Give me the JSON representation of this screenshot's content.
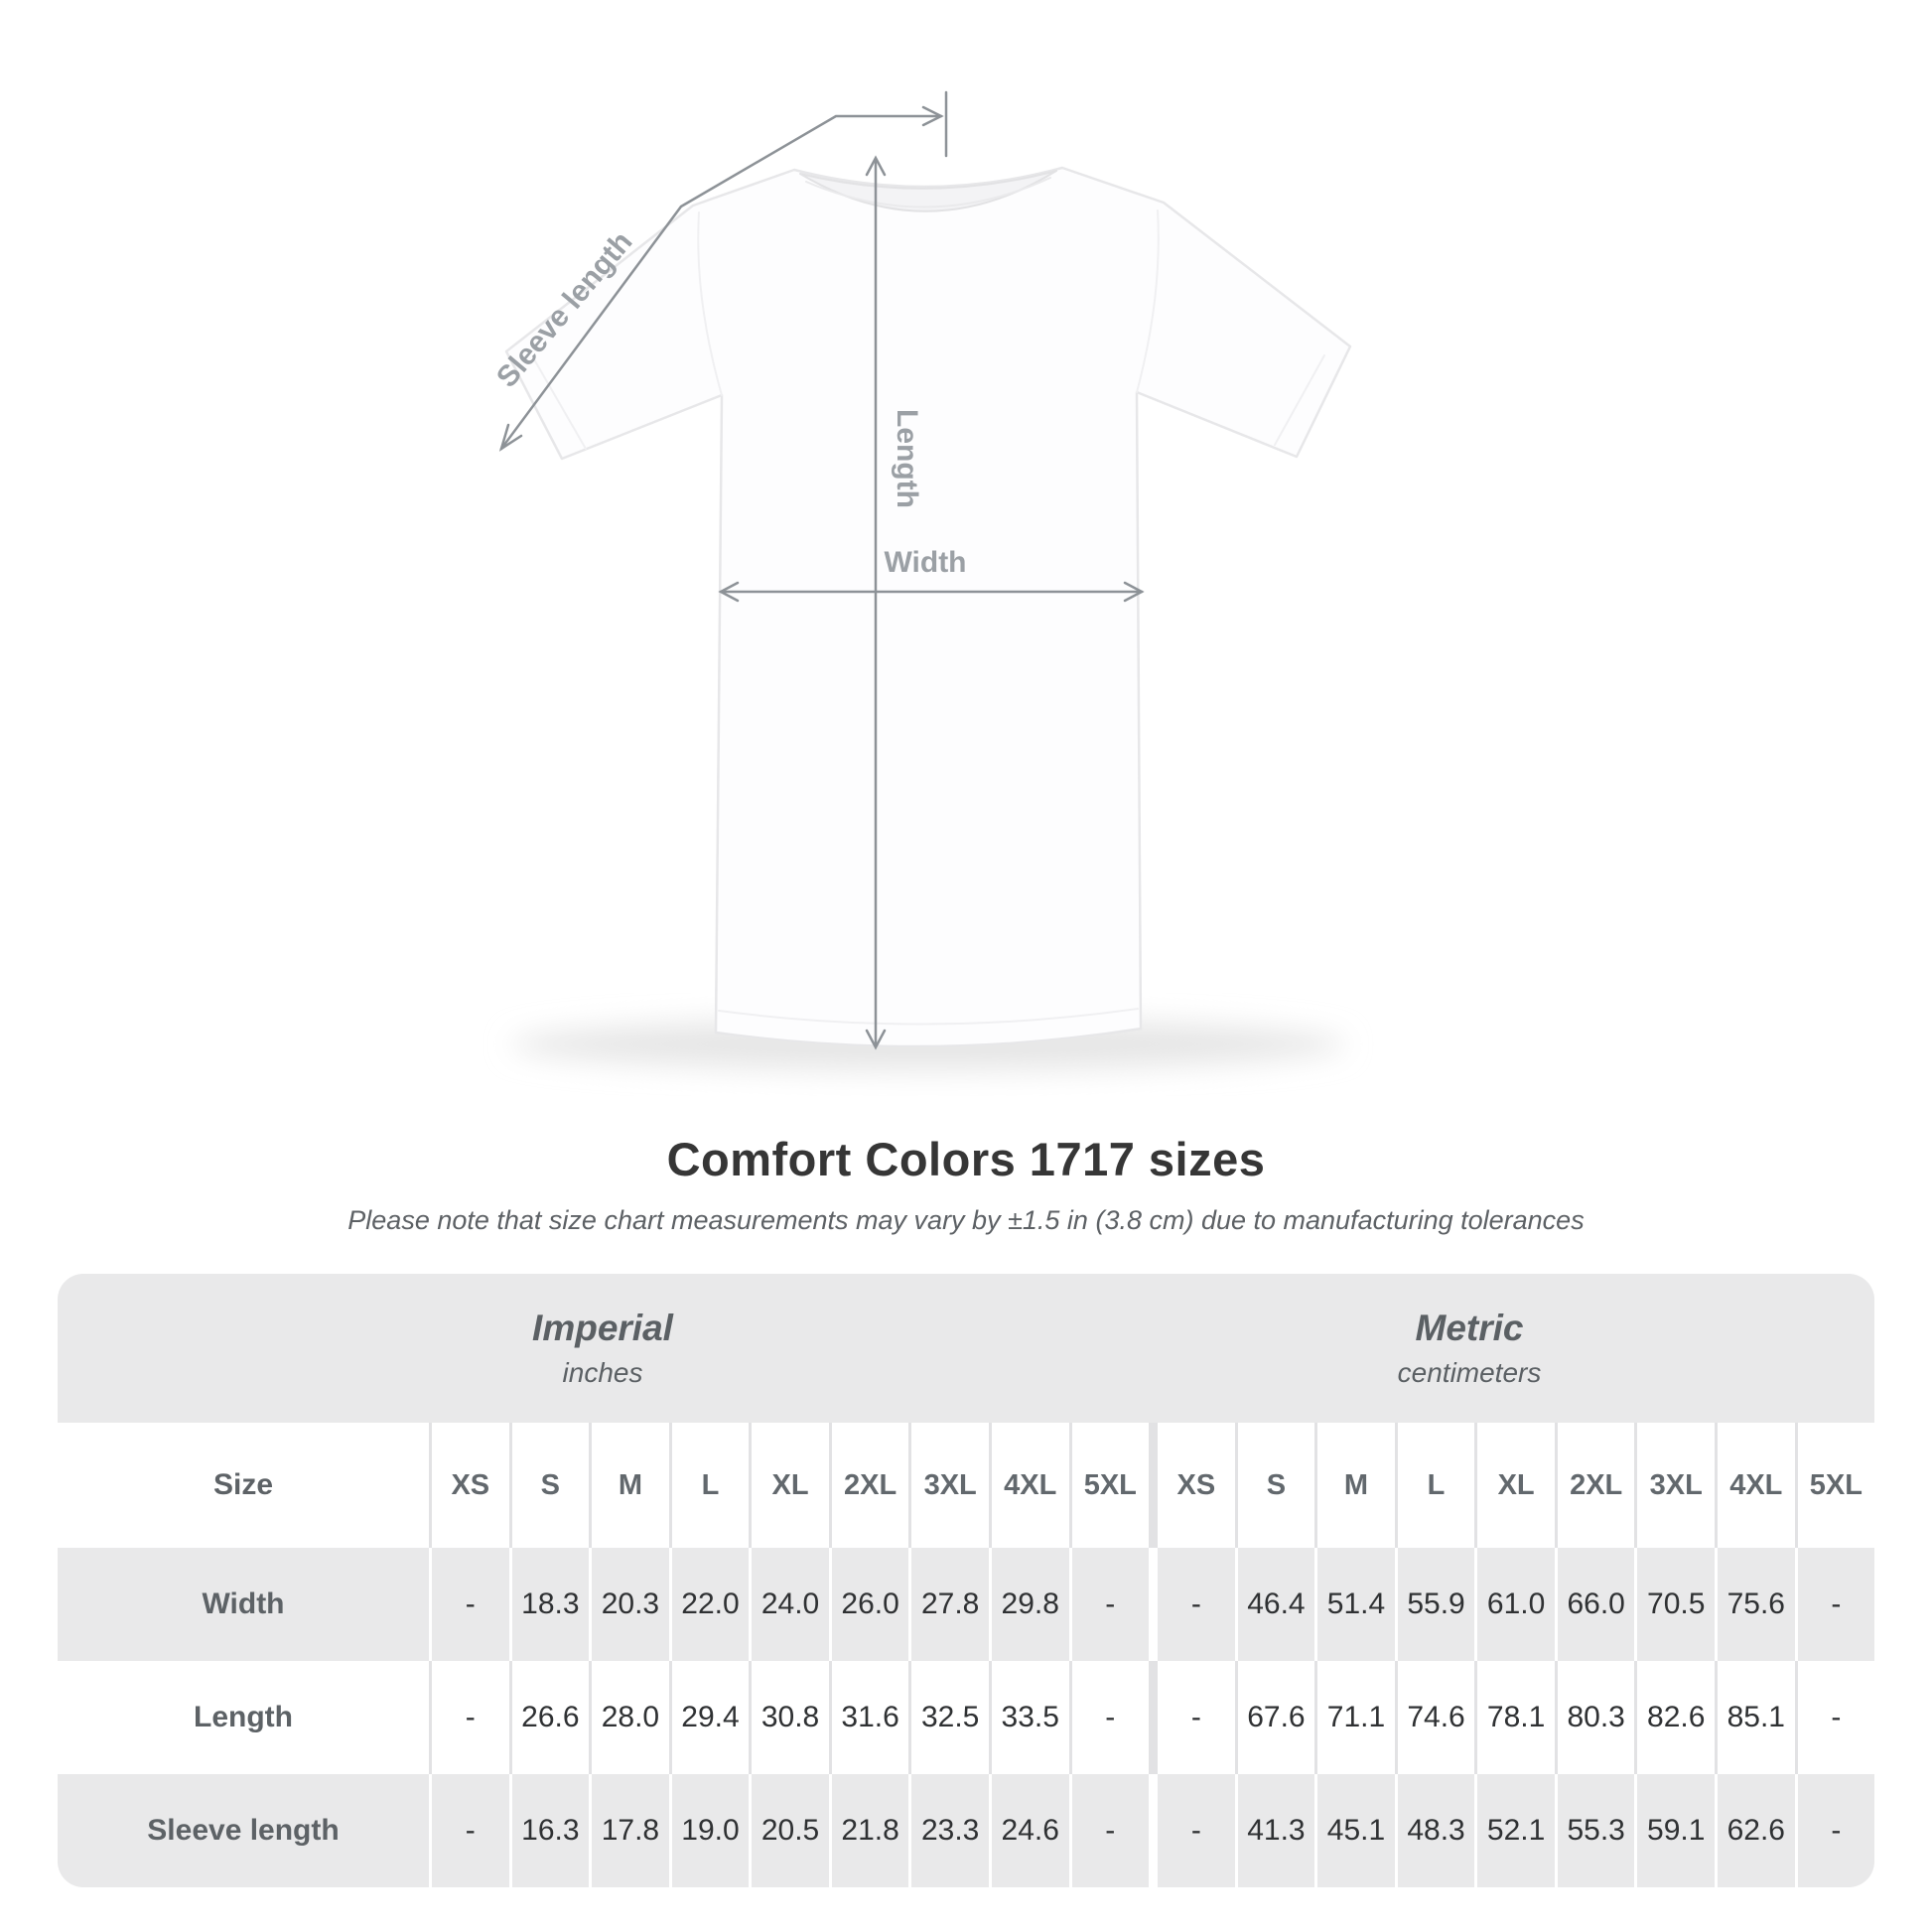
{
  "diagram": {
    "labels": {
      "sleeve_length": "Sleeve length",
      "length": "Length",
      "width": "Width"
    }
  },
  "title": "Comfort Colors 1717 sizes",
  "subtitle": "Please note that size chart measurements may vary by ±1.5 in (3.8 cm) due to manufacturing tolerances",
  "table": {
    "size_label": "Size",
    "groups": [
      {
        "name": "Imperial",
        "unit": "inches"
      },
      {
        "name": "Metric",
        "unit": "centimeters"
      }
    ],
    "sizes": [
      "XS",
      "S",
      "M",
      "L",
      "XL",
      "2XL",
      "3XL",
      "4XL",
      "5XL"
    ],
    "rows": [
      {
        "label": "Width",
        "imperial": [
          "-",
          "18.3",
          "20.3",
          "22.0",
          "24.0",
          "26.0",
          "27.8",
          "29.8",
          "-"
        ],
        "metric": [
          "-",
          "46.4",
          "51.4",
          "55.9",
          "61.0",
          "66.0",
          "70.5",
          "75.6",
          "-"
        ]
      },
      {
        "label": "Length",
        "imperial": [
          "-",
          "26.6",
          "28.0",
          "29.4",
          "30.8",
          "31.6",
          "32.5",
          "33.5",
          "-"
        ],
        "metric": [
          "-",
          "67.6",
          "71.1",
          "74.6",
          "78.1",
          "80.3",
          "82.6",
          "85.1",
          "-"
        ]
      },
      {
        "label": "Sleeve length",
        "imperial": [
          "-",
          "16.3",
          "17.8",
          "19.0",
          "20.5",
          "21.8",
          "23.3",
          "24.6",
          "-"
        ],
        "metric": [
          "-",
          "41.3",
          "45.1",
          "48.3",
          "52.1",
          "55.3",
          "59.1",
          "62.6",
          "-"
        ]
      }
    ]
  },
  "chart_data": {
    "type": "table",
    "title": "Comfort Colors 1717 sizes",
    "note": "Please note that size chart measurements may vary by ±1.5 in (3.8 cm) due to manufacturing tolerances",
    "column_groups": [
      "Imperial (inches)",
      "Metric (centimeters)"
    ],
    "columns": [
      "Size",
      "XS",
      "S",
      "M",
      "L",
      "XL",
      "2XL",
      "3XL",
      "4XL",
      "5XL",
      "XS",
      "S",
      "M",
      "L",
      "XL",
      "2XL",
      "3XL",
      "4XL",
      "5XL"
    ],
    "rows": [
      [
        "Width",
        "-",
        "18.3",
        "20.3",
        "22.0",
        "24.0",
        "26.0",
        "27.8",
        "29.8",
        "-",
        "-",
        "46.4",
        "51.4",
        "55.9",
        "61.0",
        "66.0",
        "70.5",
        "75.6",
        "-"
      ],
      [
        "Length",
        "-",
        "26.6",
        "28.0",
        "29.4",
        "30.8",
        "31.6",
        "32.5",
        "33.5",
        "-",
        "-",
        "67.6",
        "71.1",
        "74.6",
        "78.1",
        "80.3",
        "82.6",
        "85.1",
        "-"
      ],
      [
        "Sleeve length",
        "-",
        "16.3",
        "17.8",
        "19.0",
        "20.5",
        "21.8",
        "23.3",
        "24.6",
        "-",
        "-",
        "41.3",
        "45.1",
        "48.3",
        "52.1",
        "55.3",
        "59.1",
        "62.6",
        "-"
      ]
    ],
    "colors": {
      "band_gray": "#e9e9ea",
      "text_dark": "#2f3133",
      "text_gray": "#5d6266",
      "measure_line": "#8d9297",
      "measure_label": "#9ba0a5"
    }
  }
}
